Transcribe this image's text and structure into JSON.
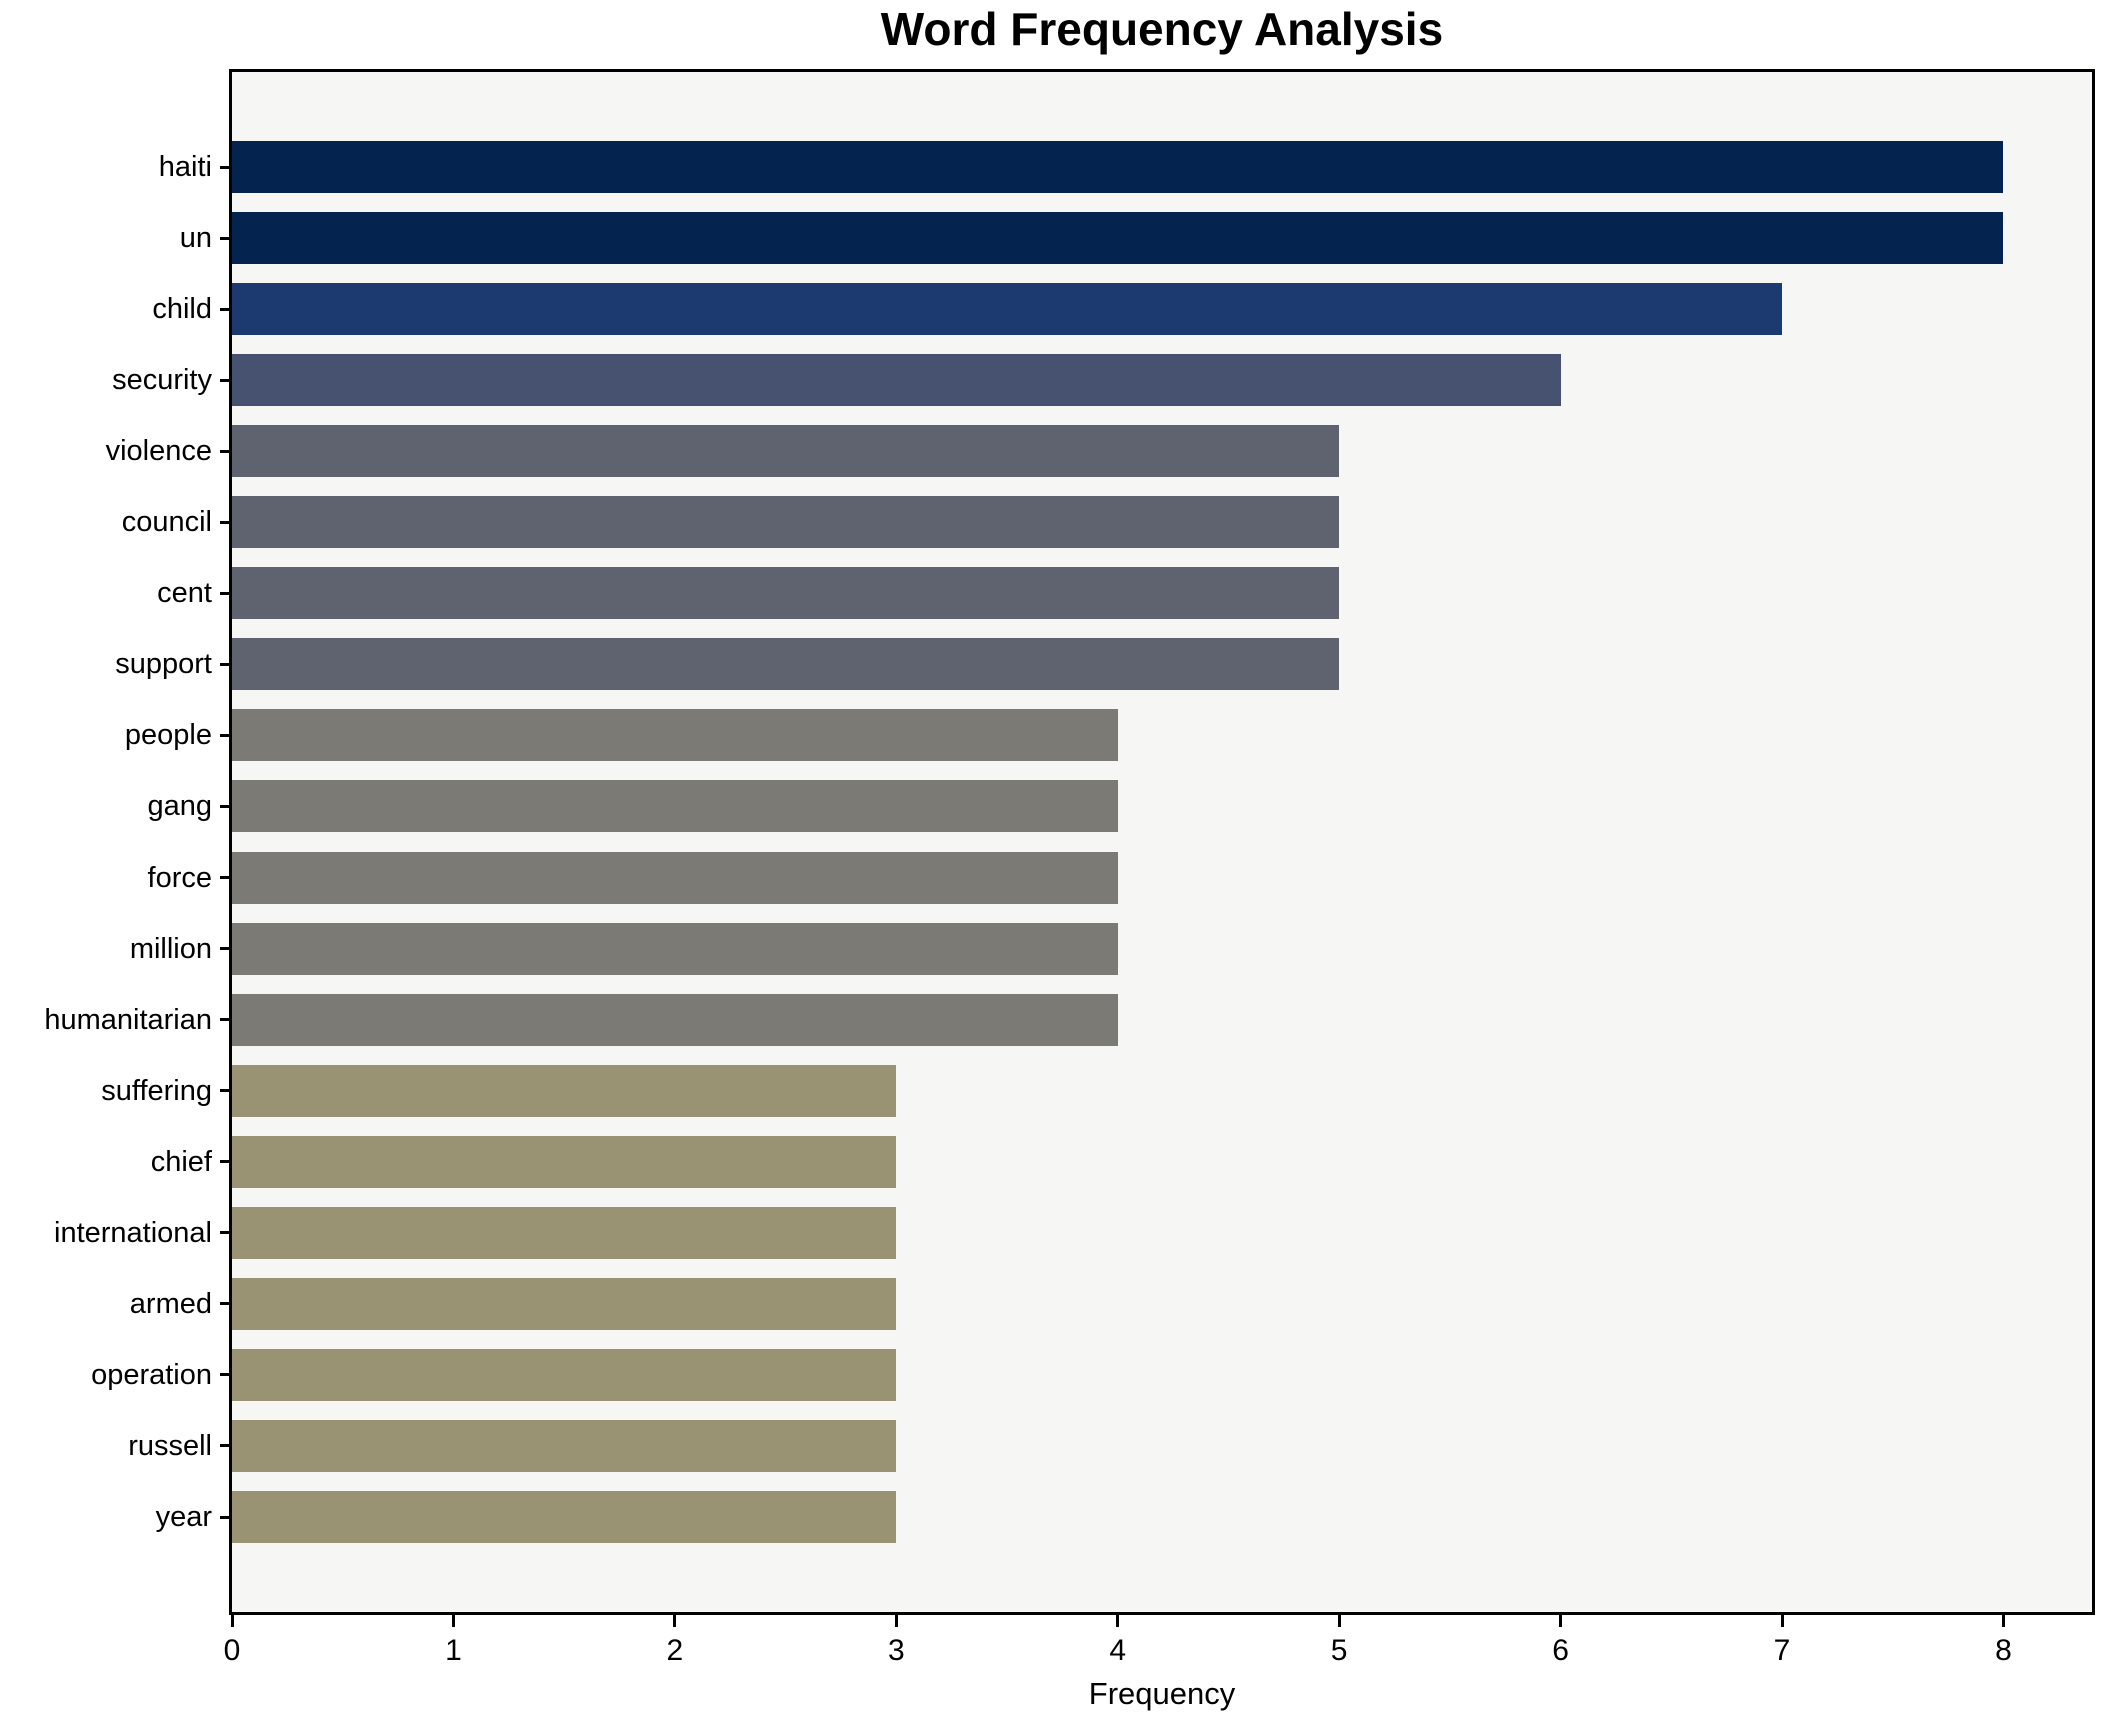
{
  "title": "Word Frequency Analysis",
  "chart_data": {
    "type": "bar",
    "orientation": "horizontal",
    "title": "Word Frequency Analysis",
    "xlabel": "Frequency",
    "ylabel": "",
    "categories": [
      "haiti",
      "un",
      "child",
      "security",
      "violence",
      "council",
      "cent",
      "support",
      "people",
      "gang",
      "force",
      "million",
      "humanitarian",
      "suffering",
      "chief",
      "international",
      "armed",
      "operation",
      "russell",
      "year"
    ],
    "values": [
      8,
      8,
      7,
      6,
      5,
      5,
      5,
      5,
      4,
      4,
      4,
      4,
      4,
      3,
      3,
      3,
      3,
      3,
      3,
      3
    ],
    "bar_colors": [
      "#05234f",
      "#05234f",
      "#1c3a70",
      "#475271",
      "#5f636f",
      "#5f636f",
      "#5f636f",
      "#5f636f",
      "#7b7a74",
      "#7b7a74",
      "#7b7a74",
      "#7b7a74",
      "#7b7a74",
      "#999273",
      "#999273",
      "#999273",
      "#999273",
      "#999273",
      "#999273",
      "#999273"
    ],
    "xlim": [
      0,
      8.4
    ],
    "x_ticks": [
      0,
      1,
      2,
      3,
      4,
      5,
      6,
      7,
      8
    ],
    "grid": false,
    "legend": "none",
    "plot_bg": "#f6f6f4",
    "fig_bg": "#ffffff",
    "spine_color": "#000000"
  }
}
